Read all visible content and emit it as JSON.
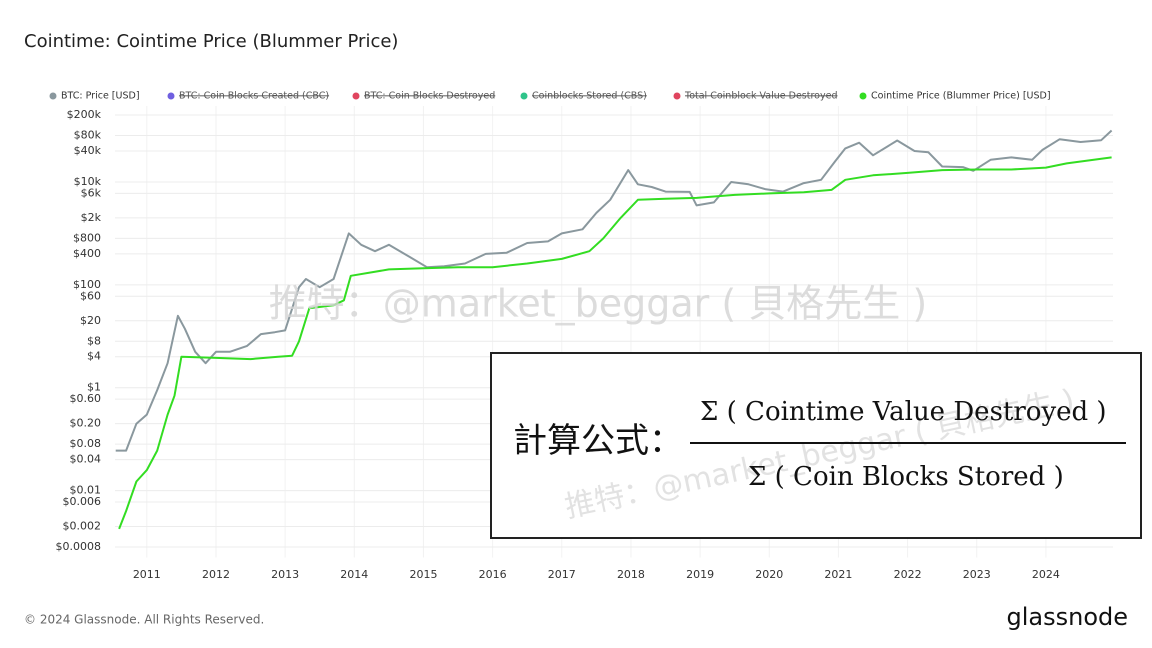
{
  "chart_data": {
    "type": "line",
    "title": "Cointime: Cointime Price (Blummer Price)",
    "log_y": true,
    "grid": true,
    "legend": "top",
    "xlim": [
      2010.54,
      2024.97
    ],
    "xticks": [
      2011,
      2012,
      2013,
      2014,
      2015,
      2016,
      2017,
      2018,
      2019,
      2020,
      2021,
      2022,
      2023,
      2024
    ],
    "ylim": [
      0.0005,
      300000
    ],
    "yticks": [
      {
        "value": 200000,
        "label": "$200k"
      },
      {
        "value": 80000,
        "label": "$80k"
      },
      {
        "value": 40000,
        "label": "$40k"
      },
      {
        "value": 10000,
        "label": "$10k"
      },
      {
        "value": 6000,
        "label": "$6k"
      },
      {
        "value": 2000,
        "label": "$2k"
      },
      {
        "value": 800,
        "label": "$800"
      },
      {
        "value": 400,
        "label": "$400"
      },
      {
        "value": 100,
        "label": "$100"
      },
      {
        "value": 60,
        "label": "$60"
      },
      {
        "value": 20,
        "label": "$20"
      },
      {
        "value": 8,
        "label": "$8"
      },
      {
        "value": 4,
        "label": "$4"
      },
      {
        "value": 1,
        "label": "$1"
      },
      {
        "value": 0.6,
        "label": "$0.60"
      },
      {
        "value": 0.2,
        "label": "$0.20"
      },
      {
        "value": 0.08,
        "label": "$0.08"
      },
      {
        "value": 0.04,
        "label": "$0.04"
      },
      {
        "value": 0.01,
        "label": "$0.01"
      },
      {
        "value": 0.006,
        "label": "$0.006"
      },
      {
        "value": 0.002,
        "label": "$0.002"
      },
      {
        "value": 0.0008,
        "label": "$0.0008"
      }
    ],
    "series": [
      {
        "name": "BTC: Price [USD]",
        "color": "#8a989e",
        "x": [
          2010.55,
          2010.7,
          2010.85,
          2011.0,
          2011.15,
          2011.3,
          2011.45,
          2011.55,
          2011.7,
          2011.85,
          2012.0,
          2012.2,
          2012.45,
          2012.65,
          2012.85,
          2013.0,
          2013.2,
          2013.3,
          2013.5,
          2013.7,
          2013.92,
          2014.1,
          2014.3,
          2014.5,
          2014.8,
          2015.05,
          2015.3,
          2015.6,
          2015.9,
          2016.2,
          2016.5,
          2016.8,
          2017.0,
          2017.3,
          2017.5,
          2017.7,
          2017.96,
          2018.1,
          2018.3,
          2018.5,
          2018.85,
          2018.95,
          2019.2,
          2019.45,
          2019.7,
          2019.95,
          2020.2,
          2020.5,
          2020.75,
          2020.95,
          2021.1,
          2021.3,
          2021.5,
          2021.85,
          2022.1,
          2022.3,
          2022.5,
          2022.8,
          2022.95,
          2023.2,
          2023.5,
          2023.8,
          2023.95,
          2024.2,
          2024.5,
          2024.8,
          2024.95
        ],
        "values": [
          0.06,
          0.06,
          0.2,
          0.3,
          0.9,
          3,
          25,
          14,
          5,
          3,
          5,
          5,
          6.5,
          11,
          12,
          13,
          90,
          130,
          90,
          130,
          1000,
          600,
          450,
          600,
          350,
          220,
          230,
          260,
          400,
          420,
          650,
          700,
          1000,
          1200,
          2500,
          4500,
          17000,
          9000,
          8000,
          6500,
          6400,
          3500,
          4000,
          10000,
          9000,
          7200,
          6500,
          9500,
          11000,
          25000,
          45000,
          58000,
          33000,
          64000,
          40000,
          38000,
          20000,
          19500,
          16500,
          27000,
          30000,
          27000,
          42000,
          68000,
          60000,
          65000,
          100000
        ]
      },
      {
        "name": "BTC: Coin Blocks Created (CBC)",
        "color": "#6f5fe0",
        "hidden": true
      },
      {
        "name": "BTC: Coin Blocks Destroyed",
        "color": "#e0445e",
        "hidden": true
      },
      {
        "name": "Coinblocks Stored (CBS)",
        "color": "#2fc48a",
        "hidden": true
      },
      {
        "name": "Total Coinblock Value Destroyed",
        "color": "#e0445e",
        "hidden": true
      },
      {
        "name": "Cointime Price (Blummer Price) [USD]",
        "color": "#33dd22",
        "x": [
          2010.6,
          2010.7,
          2010.85,
          2011.0,
          2011.15,
          2011.3,
          2011.4,
          2011.5,
          2012.0,
          2012.5,
          2012.9,
          2013.1,
          2013.2,
          2013.35,
          2013.7,
          2013.85,
          2013.95,
          2014.5,
          2015.0,
          2015.5,
          2016.0,
          2016.5,
          2017.0,
          2017.4,
          2017.6,
          2017.85,
          2018.1,
          2018.5,
          2018.95,
          2019.5,
          2020.0,
          2020.5,
          2020.9,
          2021.1,
          2021.5,
          2022.0,
          2022.5,
          2023.0,
          2023.5,
          2024.0,
          2024.3,
          2024.95
        ],
        "values": [
          0.0018,
          0.004,
          0.015,
          0.025,
          0.06,
          0.3,
          0.7,
          4,
          3.8,
          3.6,
          4,
          4.2,
          8,
          35,
          40,
          50,
          150,
          200,
          210,
          220,
          220,
          260,
          320,
          450,
          800,
          2000,
          4500,
          4700,
          4900,
          5600,
          6000,
          6300,
          7000,
          11000,
          13500,
          15000,
          17000,
          17500,
          17500,
          19000,
          23000,
          30000
        ]
      }
    ]
  },
  "annotation": {
    "label": "計算公式：",
    "numerator": "Σ ( Cointime Value Destroyed )",
    "denominator": "Σ ( Coin Blocks Stored )"
  },
  "watermark": "推特：@market_beggar ( 貝格先生 )",
  "footer": "© 2024 Glassnode. All Rights Reserved.",
  "logo": "glassnode"
}
